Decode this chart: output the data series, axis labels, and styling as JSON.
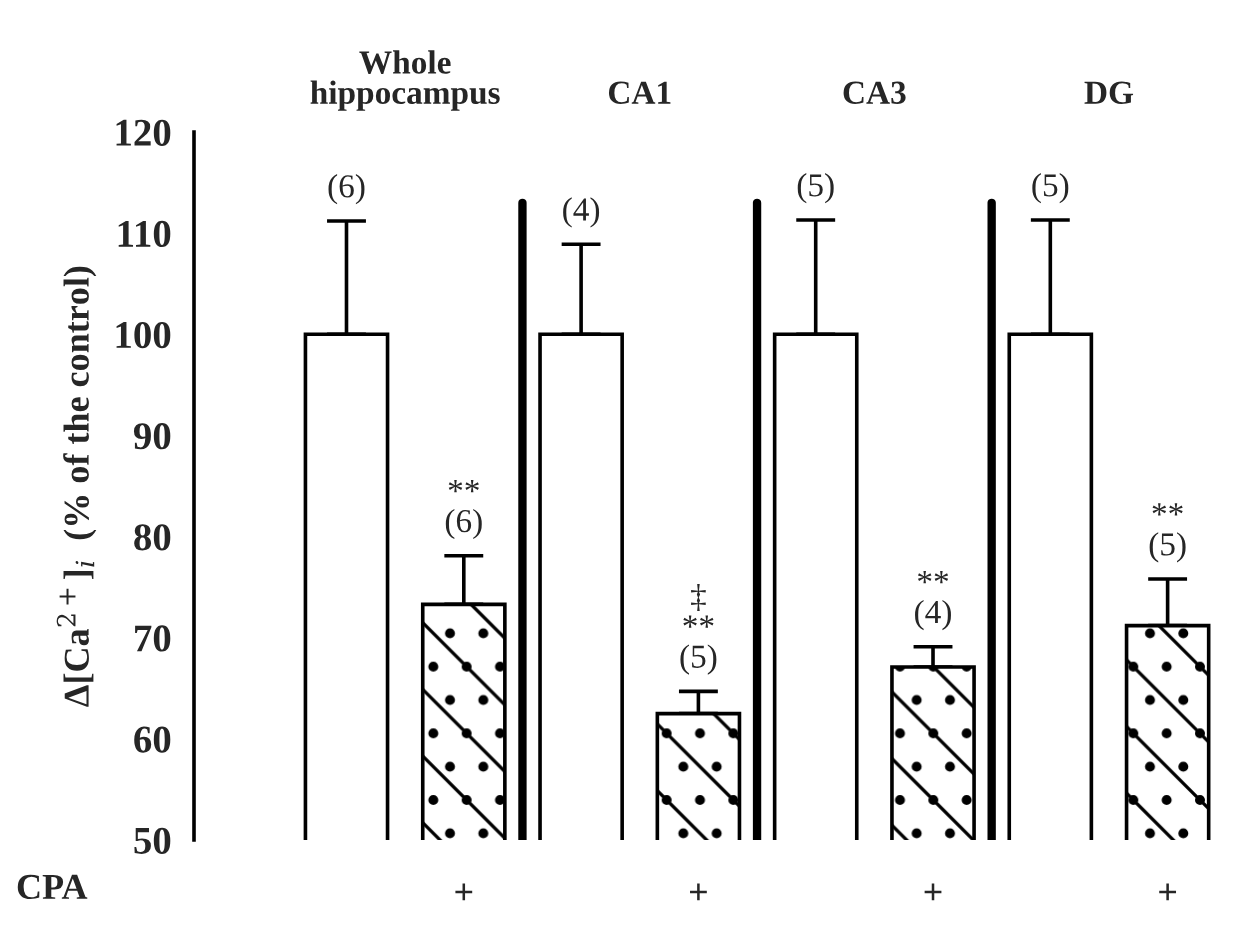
{
  "chart_data": {
    "type": "bar",
    "ylabel": "Δ[Ca$^{2+}$]$_{i}$  (% of the control)",
    "categories": [
      null,
      "+",
      null,
      "+",
      null,
      "+",
      null,
      "+"
    ],
    "values": [
      100,
      73.3,
      100,
      62.5,
      100,
      67.1,
      100,
      71.2
    ],
    "colors": [
      "#ffffff",
      "#ffffff",
      "#ffffff",
      "#ffffff",
      "#ffffff",
      "#ffffff",
      "#ffffff",
      "#ffffff"
    ],
    "errors": [
      [
        100,
        111.2
      ],
      [
        73.3,
        78.1
      ],
      [
        100,
        108.9
      ],
      [
        62.5,
        64.7
      ],
      [
        100,
        111.3
      ],
      [
        67.1,
        69.1
      ],
      [
        100,
        111.3
      ],
      [
        71.2,
        75.8
      ]
    ],
    "ylim": [
      50,
      120
    ],
    "yticks": [
      50,
      60,
      70,
      80,
      90,
      100,
      110,
      120
    ],
    "annotations": [
      "Whole\nhippocampus",
      "CA1",
      "CA3",
      "DG",
      "(6)",
      "**\n(6)",
      "(4)",
      "‡\n**\n(5)",
      "(5)",
      "**\n(4)",
      "(5)",
      "**\n(5)",
      "CPA"
    ]
  }
}
